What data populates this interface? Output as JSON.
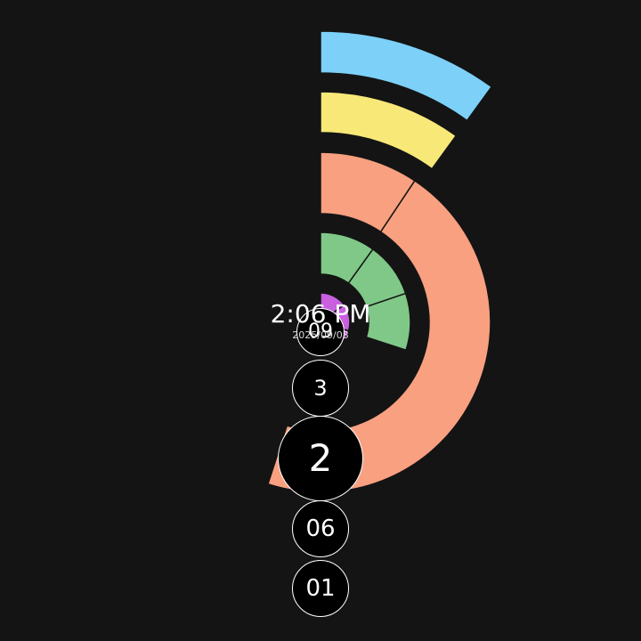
{
  "clock": {
    "time": "2:06 PM",
    "date": "2025/09/03"
  },
  "colors": {
    "background": "#141414",
    "ring_seconds": "#7dd0f8",
    "ring_minutes": "#f8e878",
    "ring_hours": "#f8a080",
    "ring_day": "#80c888",
    "ring_month": "#c860e0",
    "bubble_fill": "#000000",
    "bubble_border": "#ffffff"
  },
  "rings": [
    {
      "id": "seconds",
      "color": "#7dd0f8",
      "segments": 1,
      "fraction": 0.1
    },
    {
      "id": "minutes",
      "color": "#f8e878",
      "segments": 1,
      "fraction": 0.1
    },
    {
      "id": "hours",
      "color": "#f8a080",
      "segments": 2,
      "fraction": 0.55
    },
    {
      "id": "day",
      "color": "#80c888",
      "segments": 3,
      "fraction": 0.3
    },
    {
      "id": "month",
      "color": "#c860e0",
      "segments": 3,
      "fraction": 0.45
    }
  ],
  "bubbles": [
    {
      "id": "bubble-top",
      "label": "09"
    },
    {
      "id": "bubble-3",
      "label": "3"
    },
    {
      "id": "bubble-2",
      "label": "2"
    },
    {
      "id": "bubble-06",
      "label": "06"
    },
    {
      "id": "bubble-01",
      "label": "01"
    }
  ]
}
